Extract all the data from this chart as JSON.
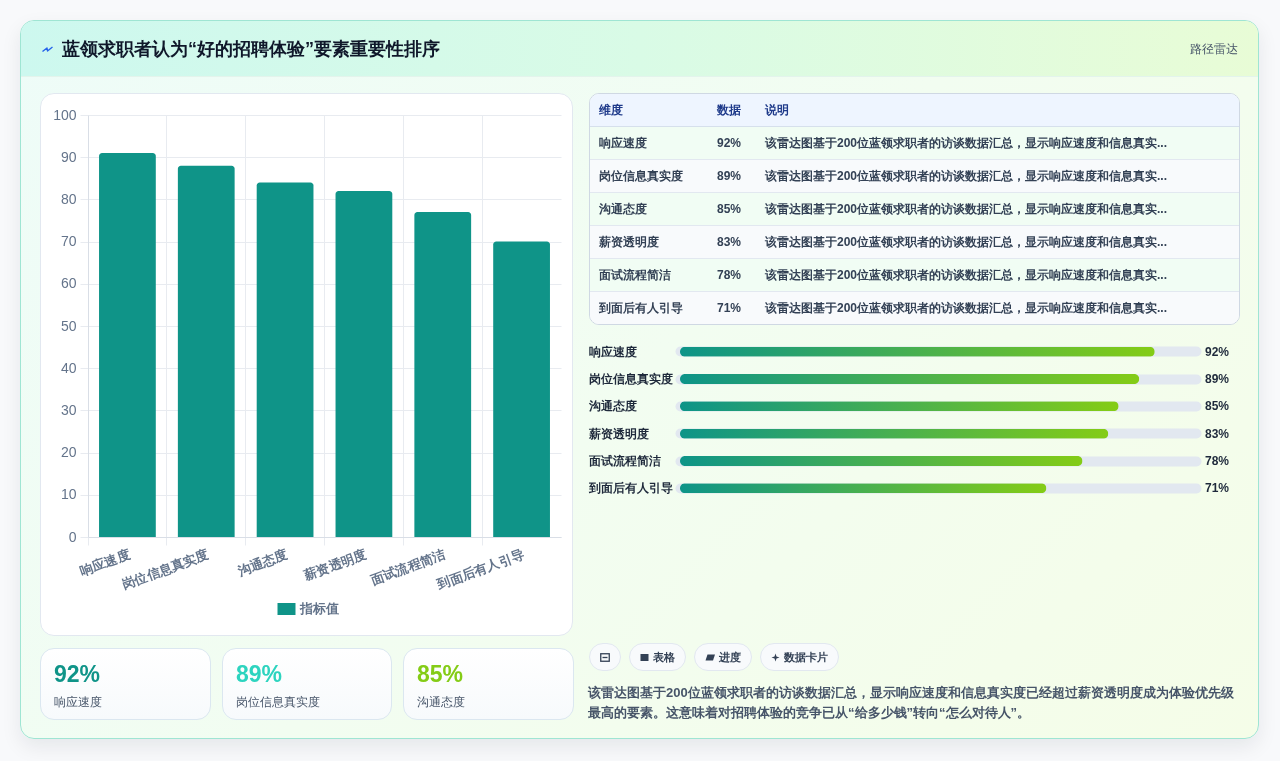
{
  "chart_data": [
    {
      "type": "other",
      "title": "蓝领求职者认为“好的招聘体验”要素重要性排序",
      "subtitle": "路径雷达"
    },
    {
      "type": "bar",
      "categories": [
        "响应速度",
        "岗位信息真实度",
        "沟通态度",
        "薪资透明度",
        "面试流程简洁",
        "到面后有人引导"
      ],
      "series": [
        {
          "name": "指标值",
          "color": "#0f9488",
          "values": [
            91,
            88,
            84,
            82,
            77,
            70
          ]
        }
      ],
      "ylim": [
        0,
        100
      ],
      "yticks": [
        0,
        10,
        20,
        30,
        40,
        50,
        60,
        70,
        80,
        90,
        100
      ],
      "grid": true,
      "legend": "bottom"
    },
    {
      "type": "other",
      "categories": [
        "响应速度",
        "岗位信息真实度",
        "沟通态度",
        "薪资透明度",
        "面试流程简洁",
        "到面后有人引导"
      ],
      "value_labels": [
        "92%",
        "89%",
        "85%",
        "83%",
        "78%",
        "71%"
      ],
      "annotations": [
        "维度",
        "数据",
        "说明",
        "该雷达图基于200位蓝领求职者的访谈数据汇总，显示响应速度和信息真实...",
        "该雷达图基于200位蓝领求职者的访谈数据汇总，显示响应速度和信息真实...",
        "该雷达图基于200位蓝领求职者的访谈数据汇总，显示响应速度和信息真实...",
        "该雷达图基于200位蓝领求职者的访谈数据汇总，显示响应速度和信息真实...",
        "该雷达图基于200位蓝领求职者的访谈数据汇总，显示响应速度和信息真实...",
        "该雷达图基于200位蓝领求职者的访谈数据汇总，显示响应速度和信息真实..."
      ]
    },
    {
      "type": "bar",
      "orientation": "horizontal",
      "categories": [
        "响应速度",
        "岗位信息真实度",
        "沟通态度",
        "薪资透明度",
        "面试流程简洁",
        "到面后有人引导"
      ],
      "values": [
        92,
        89,
        85,
        83,
        78,
        71
      ],
      "value_labels": [
        "92%",
        "89%",
        "85%",
        "83%",
        "78%",
        "71%"
      ],
      "color": "#0d9488",
      "xlim": [
        0,
        100
      ],
      "grid": "y",
      "tick_labels": "y"
    },
    {
      "type": "other",
      "categories": [
        "响应速度",
        "岗位信息真实度",
        "沟通态度"
      ],
      "value_labels": [
        "92%",
        "89%",
        "85%"
      ]
    },
    {
      "type": "other",
      "annotations": [
        "表格",
        "进度",
        "数据卡片",
        "该雷达图基于200位蓝领求职者的访谈数据汇总，显示响应速度和信息真实度已经超过薪资透明度成为体验优先级最高的要素。这意味着对招聘体验的竞争已从“给多少钱”转向“怎么对待人”。"
      ]
    }
  ]
}
